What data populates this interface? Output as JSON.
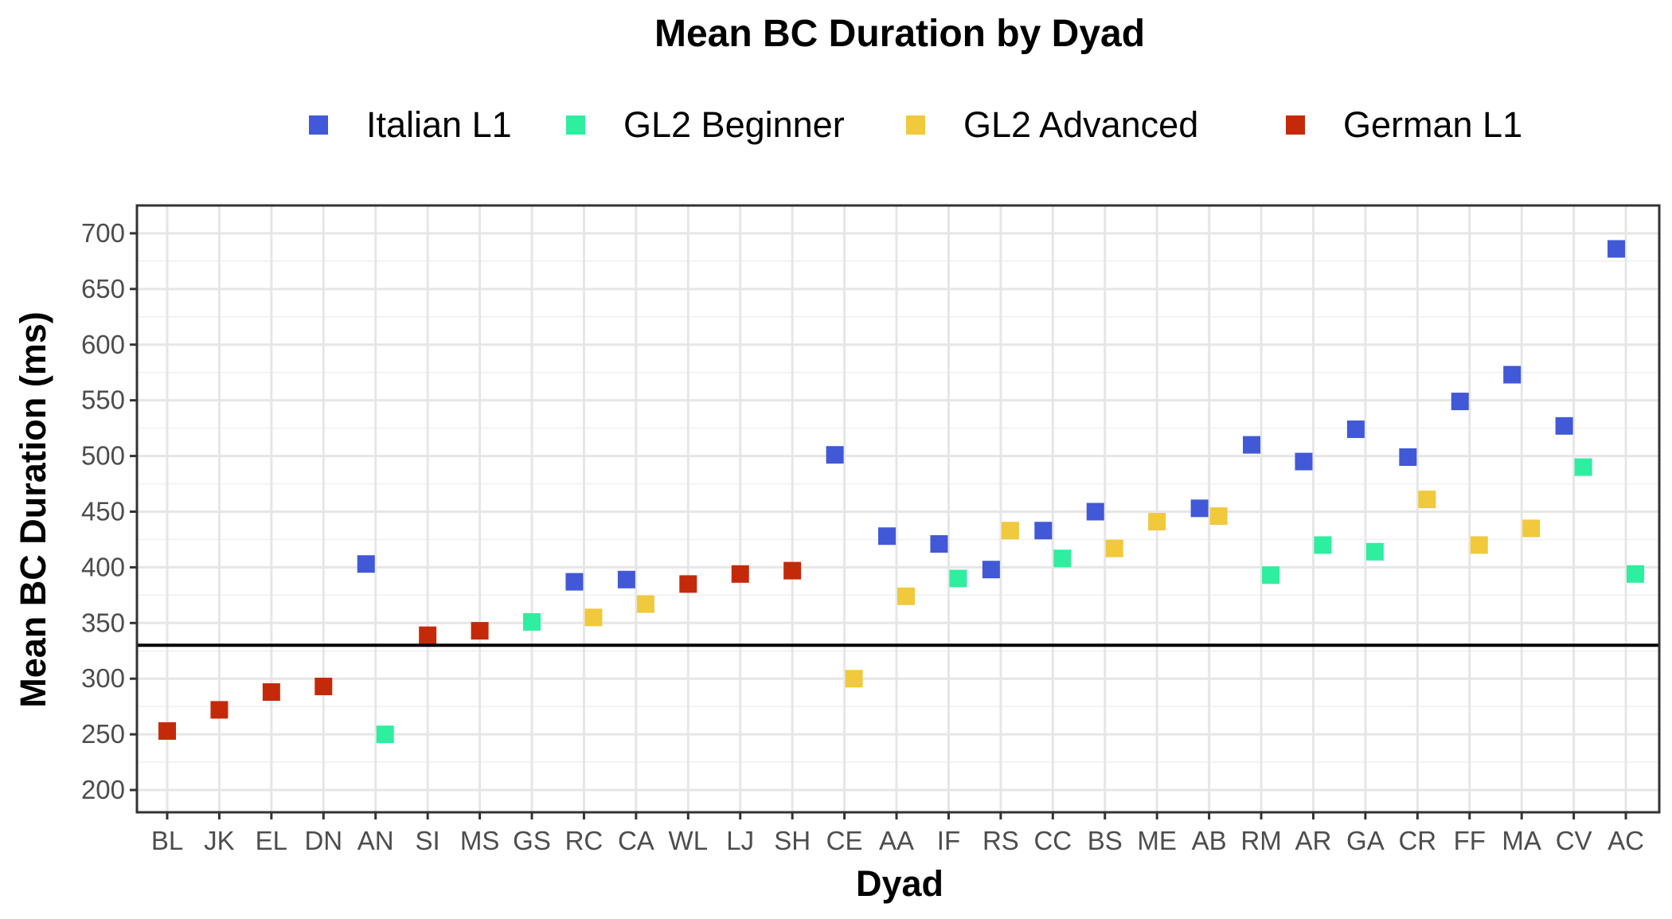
{
  "chart_data": {
    "type": "scatter",
    "title": "Mean BC Duration by Dyad",
    "xlabel": "Dyad",
    "ylabel": "Mean BC Duration (ms)",
    "ylim": [
      180,
      725
    ],
    "yticks": [
      200,
      250,
      300,
      350,
      400,
      450,
      500,
      550,
      600,
      650,
      700
    ],
    "grid": true,
    "legend_position": "top",
    "reference_line_y": 330,
    "categories": [
      "BL",
      "JK",
      "EL",
      "DN",
      "AN",
      "SI",
      "MS",
      "GS",
      "RC",
      "CA",
      "WL",
      "LJ",
      "SH",
      "CE",
      "AA",
      "IF",
      "RS",
      "CC",
      "BS",
      "ME",
      "AB",
      "RM",
      "AR",
      "GA",
      "CR",
      "FF",
      "MA",
      "CV",
      "AC"
    ],
    "series": [
      {
        "name": "Italian L1",
        "color": "#4159d6",
        "points": [
          {
            "x": "AN",
            "y": 403
          },
          {
            "x": "RC",
            "y": 387
          },
          {
            "x": "CA",
            "y": 389
          },
          {
            "x": "CE",
            "y": 501
          },
          {
            "x": "AA",
            "y": 428
          },
          {
            "x": "IF",
            "y": 421
          },
          {
            "x": "RS",
            "y": 398
          },
          {
            "x": "CC",
            "y": 433
          },
          {
            "x": "BS",
            "y": 450
          },
          {
            "x": "AB",
            "y": 453
          },
          {
            "x": "RM",
            "y": 510
          },
          {
            "x": "AR",
            "y": 495
          },
          {
            "x": "GA",
            "y": 524
          },
          {
            "x": "CR",
            "y": 499
          },
          {
            "x": "FF",
            "y": 549
          },
          {
            "x": "MA",
            "y": 573
          },
          {
            "x": "CV",
            "y": 527
          },
          {
            "x": "AC",
            "y": 686
          }
        ]
      },
      {
        "name": "GL2 Beginner",
        "color": "#2eeea0",
        "points": [
          {
            "x": "AN",
            "y": 250
          },
          {
            "x": "GS",
            "y": 351
          },
          {
            "x": "IF",
            "y": 390
          },
          {
            "x": "CC",
            "y": 408
          },
          {
            "x": "RM",
            "y": 393
          },
          {
            "x": "AR",
            "y": 420
          },
          {
            "x": "GA",
            "y": 414
          },
          {
            "x": "CV",
            "y": 490
          },
          {
            "x": "AC",
            "y": 394
          }
        ]
      },
      {
        "name": "GL2 Advanced",
        "color": "#f0c93c",
        "points": [
          {
            "x": "RC",
            "y": 355
          },
          {
            "x": "CA",
            "y": 367
          },
          {
            "x": "CE",
            "y": 300
          },
          {
            "x": "AA",
            "y": 374
          },
          {
            "x": "RS",
            "y": 433
          },
          {
            "x": "BS",
            "y": 417
          },
          {
            "x": "ME",
            "y": 441
          },
          {
            "x": "AB",
            "y": 446
          },
          {
            "x": "CR",
            "y": 461
          },
          {
            "x": "FF",
            "y": 420
          },
          {
            "x": "MA",
            "y": 435
          }
        ]
      },
      {
        "name": "German L1",
        "color": "#c42a0a",
        "points": [
          {
            "x": "BL",
            "y": 253
          },
          {
            "x": "JK",
            "y": 272
          },
          {
            "x": "EL",
            "y": 288
          },
          {
            "x": "DN",
            "y": 293
          },
          {
            "x": "SI",
            "y": 339
          },
          {
            "x": "MS",
            "y": 343
          },
          {
            "x": "WL",
            "y": 385
          },
          {
            "x": "LJ",
            "y": 394
          },
          {
            "x": "SH",
            "y": 397
          }
        ]
      }
    ]
  }
}
